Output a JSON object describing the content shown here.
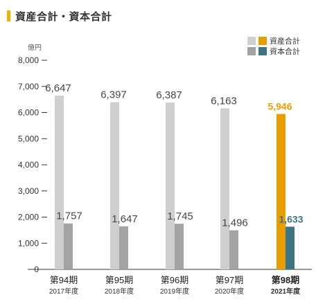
{
  "page": {
    "title": "資産合計・資本合計"
  },
  "chart_data": {
    "type": "bar",
    "unit": "億円",
    "ylim": [
      0,
      8000
    ],
    "yticks": [
      0,
      1000,
      2000,
      3000,
      4000,
      5000,
      6000,
      7000,
      8000
    ],
    "ytick_labels": [
      "0",
      "1,000",
      "2,000",
      "3,000",
      "4,000",
      "5,000",
      "6,000",
      "7,000",
      "8,000"
    ],
    "categories": [
      "第94期",
      "第95期",
      "第96期",
      "第97期",
      "第98期"
    ],
    "sublabels": [
      "2017年度",
      "2018年度",
      "2019年度",
      "2020年度",
      "2021年度"
    ],
    "highlight_index": 4,
    "series": [
      {
        "name": "資産合計",
        "values": [
          6647,
          6397,
          6387,
          6163,
          5946
        ],
        "labels": [
          "6,647",
          "6,397",
          "6,387",
          "6,163",
          "5,946"
        ],
        "color": "#cfcfcf",
        "highlight_color": "#e89e00"
      },
      {
        "name": "資本合計",
        "values": [
          1757,
          1647,
          1745,
          1496,
          1633
        ],
        "labels": [
          "1,757",
          "1,647",
          "1,745",
          "1,496",
          "1,633"
        ],
        "color": "#a3a3a3",
        "highlight_color": "#3e7385"
      }
    ],
    "legend": "top-right",
    "grid": false
  }
}
